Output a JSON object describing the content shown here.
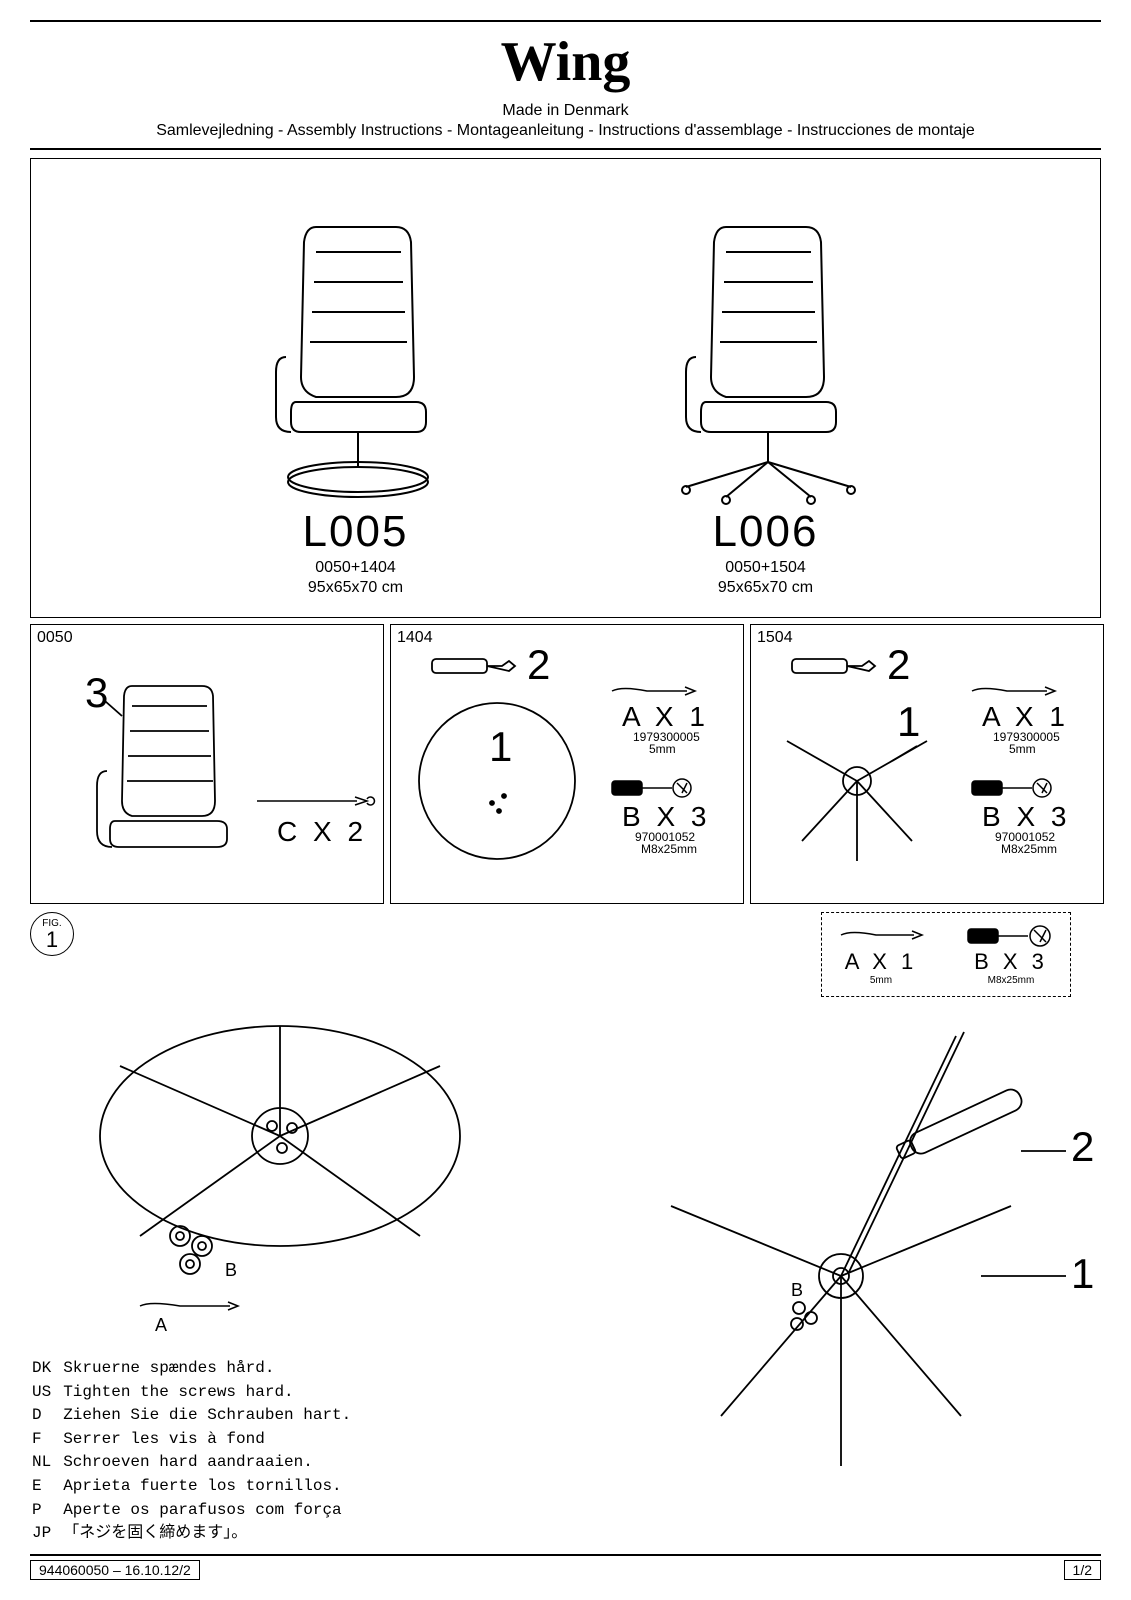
{
  "header": {
    "title": "Wing",
    "subtitle": "Made in Denmark",
    "languages": "Samlevejledning - Assembly Instructions - Montageanleitung - Instructions d'assemblage - Instrucciones de montaje"
  },
  "models": [
    {
      "name": "L005",
      "code": "0050+1404",
      "dim": "95x65x70 cm"
    },
    {
      "name": "L006",
      "code": "0050+1504",
      "dim": "95x65x70 cm"
    }
  ],
  "parts": {
    "body": {
      "id": "0050",
      "callout": "3",
      "hardware": {
        "label": "C  X  2"
      }
    },
    "base_round": {
      "id": "1404",
      "handle_callout": "2",
      "base_callout": "1",
      "hw_a": {
        "label": "A  X  1",
        "code": "1979300005",
        "size": "5mm"
      },
      "hw_b": {
        "label": "B  X  3",
        "code": "970001052",
        "size": "M8x25mm"
      }
    },
    "base_star": {
      "id": "1504",
      "handle_callout": "2",
      "base_callout": "1",
      "hw_a": {
        "label": "A  X  1",
        "code": "1979300005",
        "size": "5mm"
      },
      "hw_b": {
        "label": "B  X  3",
        "code": "970001052",
        "size": "M8x25mm"
      }
    }
  },
  "fig1": {
    "label_top": "FIG.",
    "number": "1",
    "toolbox": {
      "a": {
        "label": "A  X  1",
        "size": "5mm"
      },
      "b": {
        "label": "B  X  3",
        "size": "M8x25mm"
      }
    },
    "left_diagram": {
      "a_label": "A",
      "b_label": "B"
    },
    "right_diagram": {
      "b_label": "B",
      "callout_1": "1",
      "callout_2": "2"
    }
  },
  "instructions": [
    {
      "lang": "DK",
      "text": "Skruerne spændes hård."
    },
    {
      "lang": "US",
      "text": "Tighten the screws hard."
    },
    {
      "lang": "D",
      "text": "Ziehen Sie die Schrauben hart."
    },
    {
      "lang": "F",
      "text": "Serrer les vis à fond"
    },
    {
      "lang": "NL",
      "text": "Schroeven hard aandraaien."
    },
    {
      "lang": "E",
      "text": "Aprieta fuerte los tornillos."
    },
    {
      "lang": "P",
      "text": "Aperte os parafusos com força"
    },
    {
      "lang": "JP",
      "text": "「ネジを固く締めます」。"
    }
  ],
  "footer": {
    "doc": "944060050  –  16.10.12/2",
    "page": "1/2"
  },
  "colors": {
    "stroke": "#000000",
    "bg": "#ffffff"
  }
}
